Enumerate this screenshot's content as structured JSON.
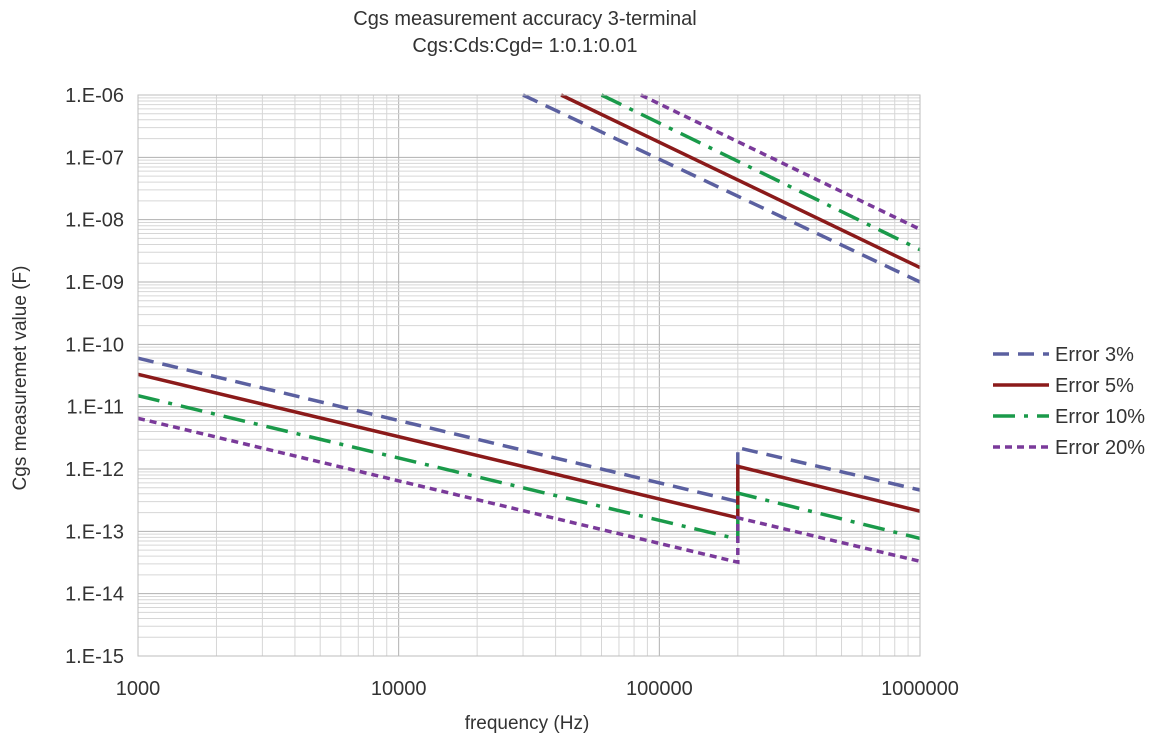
{
  "chart_data": {
    "type": "line",
    "title": [
      "Cgs measurement accuracy 3-terminal",
      "Cgs:Cds:Cgd= 1:0.1:0.01"
    ],
    "xlabel": "frequency (Hz)",
    "ylabel": "Cgs measuremet value (F)",
    "x_scale": "log",
    "y_scale": "log",
    "xlim": [
      1000,
      1000000
    ],
    "ylim": [
      1e-15,
      1e-06
    ],
    "x_ticks": [
      {
        "value": 1000,
        "label": "1000"
      },
      {
        "value": 10000,
        "label": "10000"
      },
      {
        "value": 100000,
        "label": "100000"
      },
      {
        "value": 1000000,
        "label": "1000000"
      }
    ],
    "y_ticks": [
      {
        "value": 1e-15,
        "label": "1.E-15"
      },
      {
        "value": 1e-14,
        "label": "1.E-14"
      },
      {
        "value": 1e-13,
        "label": "1.E-13"
      },
      {
        "value": 1e-12,
        "label": "1.E-12"
      },
      {
        "value": 1e-11,
        "label": "1.E-11"
      },
      {
        "value": 1e-10,
        "label": "1.E-10"
      },
      {
        "value": 1e-09,
        "label": "1.E-09"
      },
      {
        "value": 1e-08,
        "label": "1.E-08"
      },
      {
        "value": 1e-07,
        "label": "1.E-07"
      },
      {
        "value": 1e-06,
        "label": "1.E-06"
      }
    ],
    "grid": true,
    "legend_position": "right",
    "series": [
      {
        "name": "Error 3%",
        "color": "#5b60a0",
        "dash": "dash",
        "upper": [
          [
            30000,
            1e-06
          ],
          [
            1000000,
            1e-09
          ]
        ],
        "lower": [
          [
            1000,
            6e-11
          ],
          [
            200000,
            3e-13
          ],
          [
            200000,
            2.2e-12
          ],
          [
            1000000,
            4.6e-13
          ]
        ]
      },
      {
        "name": "Error 5%",
        "color": "#8b1a1a",
        "dash": "solid",
        "upper": [
          [
            42000,
            1e-06
          ],
          [
            1000000,
            1.7e-09
          ]
        ],
        "lower": [
          [
            1000,
            3.3e-11
          ],
          [
            200000,
            1.65e-13
          ],
          [
            200000,
            1.1e-12
          ],
          [
            1000000,
            2.1e-13
          ]
        ]
      },
      {
        "name": "Error 10%",
        "color": "#1a9a4a",
        "dash": "dashdot",
        "upper": [
          [
            60000,
            1e-06
          ],
          [
            1000000,
            3.3e-09
          ]
        ],
        "lower": [
          [
            1000,
            1.5e-11
          ],
          [
            200000,
            7.5e-14
          ],
          [
            200000,
            4.1e-13
          ],
          [
            1000000,
            7.7e-14
          ]
        ]
      },
      {
        "name": "Error 20%",
        "color": "#7a3a9a",
        "dash": "dot",
        "upper": [
          [
            85000,
            1e-06
          ],
          [
            1000000,
            7e-09
          ]
        ],
        "lower": [
          [
            1000,
            6.5e-12
          ],
          [
            200000,
            3.2e-14
          ],
          [
            200000,
            1.65e-13
          ],
          [
            1000000,
            3.3e-14
          ]
        ]
      }
    ]
  }
}
